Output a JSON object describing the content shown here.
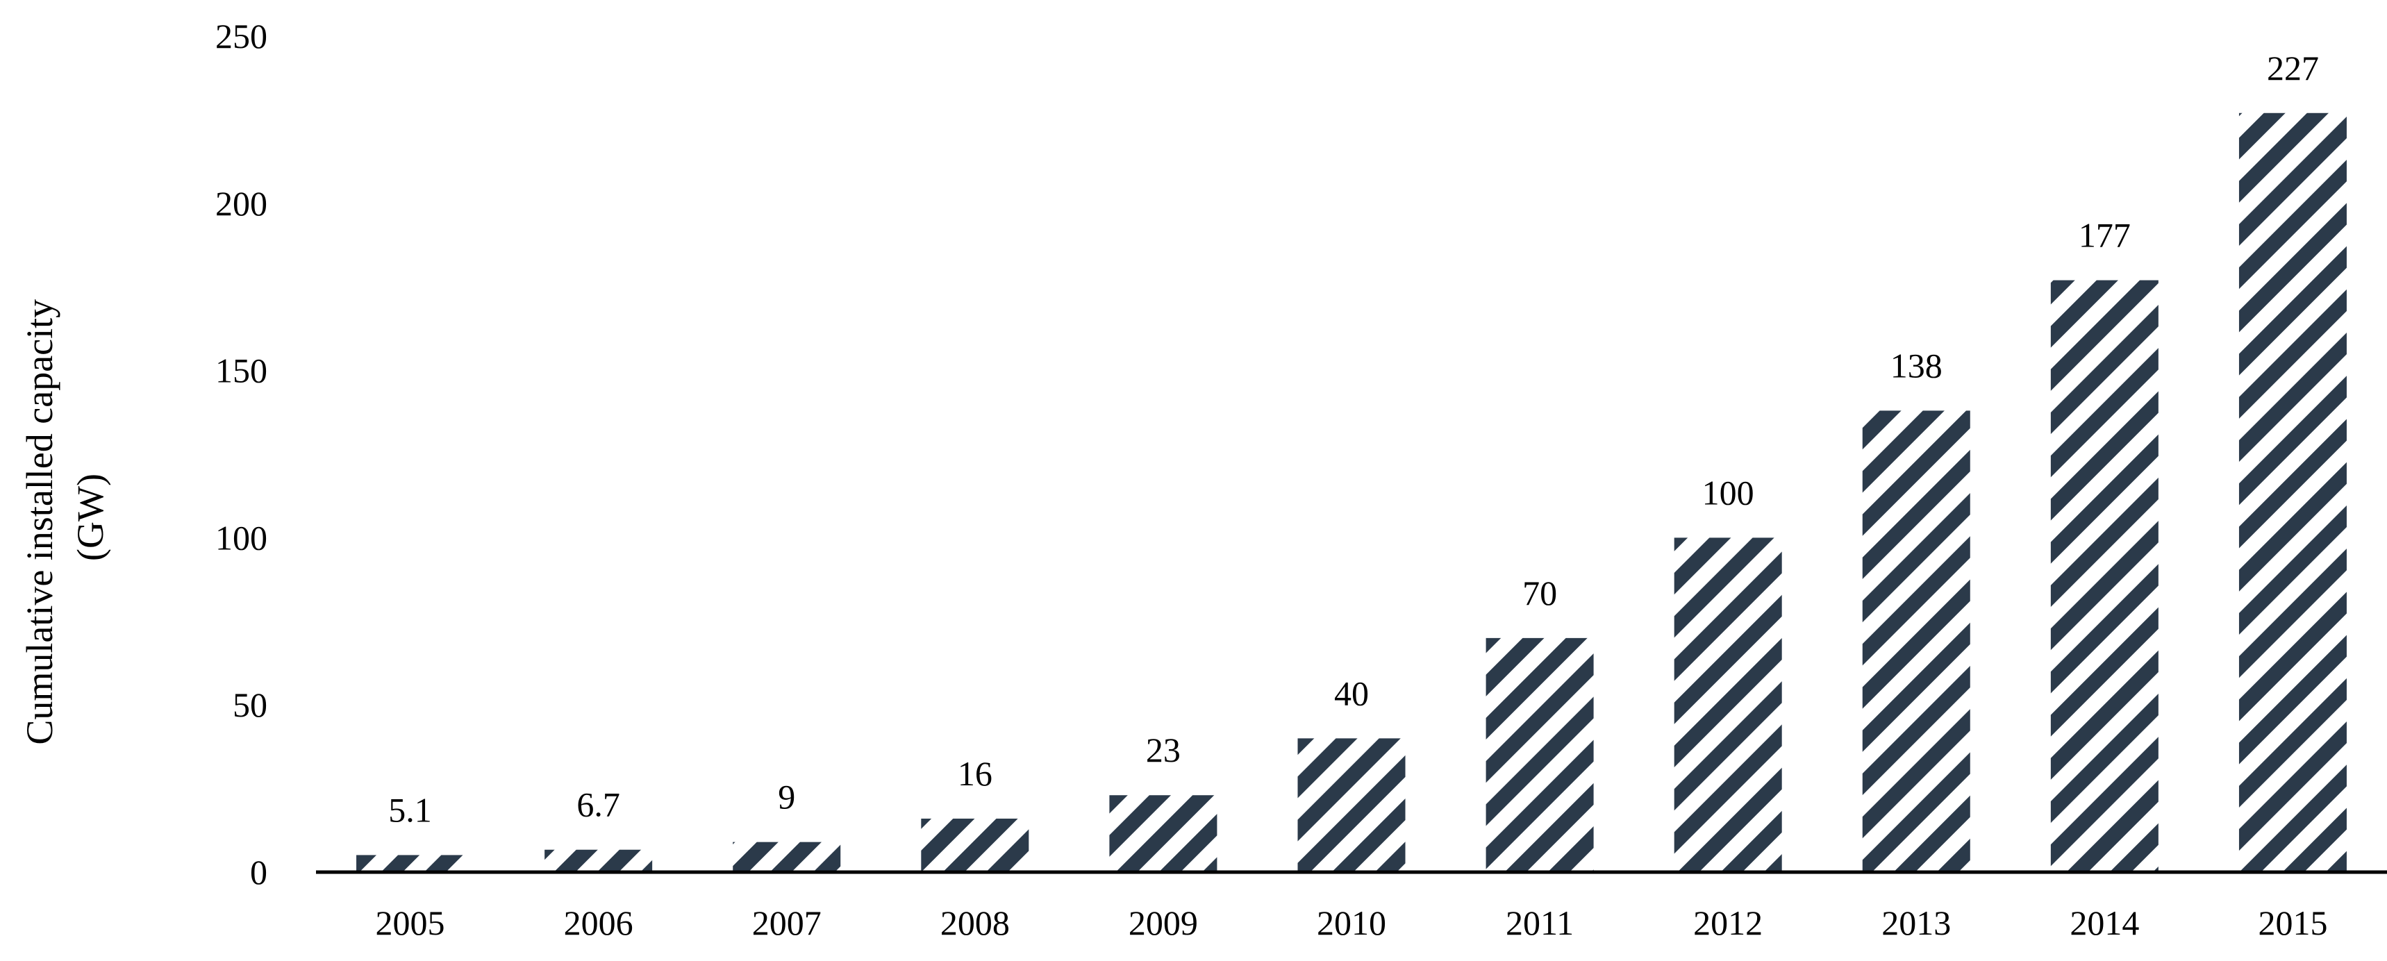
{
  "chart_data": {
    "type": "bar",
    "categories": [
      "2005",
      "2006",
      "2007",
      "2008",
      "2009",
      "2010",
      "2011",
      "2012",
      "2013",
      "2014",
      "2015"
    ],
    "values": [
      5.1,
      6.7,
      9,
      16,
      23,
      40,
      70,
      100,
      138,
      177,
      227
    ],
    "data_labels": [
      "5.1",
      "6.7",
      "9",
      "16",
      "23",
      "40",
      "70",
      "100",
      "138",
      "177",
      "227"
    ],
    "ylabel_lines": [
      "Cumulative installed capacity",
      "(GW)"
    ],
    "xlabel": "",
    "title": "",
    "ylim": [
      0,
      250
    ],
    "yticks": [
      0,
      50,
      100,
      150,
      200,
      250
    ],
    "grid": false,
    "bar_fill": "hatched-diagonal",
    "bar_color": "#2b3a4a",
    "background": "#ffffff"
  }
}
